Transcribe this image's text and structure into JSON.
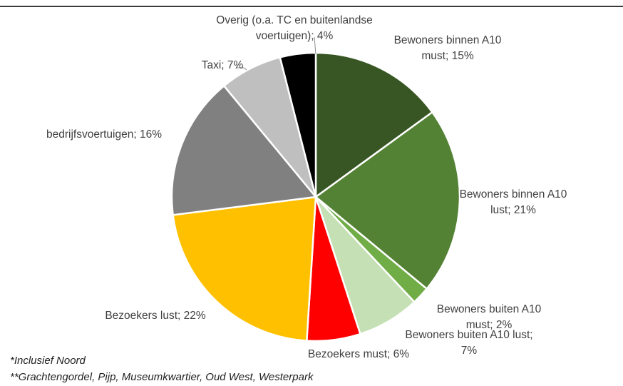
{
  "chart_data": {
    "type": "pie",
    "start": "12 o'clock",
    "direction": "clockwise",
    "slices": [
      {
        "label_lines": [
          "Bewoners binnen A10",
          "must; 15%"
        ],
        "value": 15,
        "color": "#375623"
      },
      {
        "label_lines": [
          "Bewoners binnen A10",
          "lust; 21%"
        ],
        "value": 21,
        "color": "#548235"
      },
      {
        "label_lines": [
          "Bewoners buiten A10",
          "must; 2%"
        ],
        "value": 2,
        "color": "#70ad47"
      },
      {
        "label_lines": [
          "Bewoners buiten A10 lust;",
          "7%"
        ],
        "value": 7,
        "color": "#c5e0b4"
      },
      {
        "label_lines": [
          "Bezoekers must; 6%"
        ],
        "value": 6,
        "color": "#ff0000"
      },
      {
        "label_lines": [
          "Bezoekers lust; 22%"
        ],
        "value": 22,
        "color": "#ffc000"
      },
      {
        "label_lines": [
          "bedrijfsvoertuigen; 16%"
        ],
        "value": 16,
        "color": "#808080"
      },
      {
        "label_lines": [
          "Taxi; 7%"
        ],
        "value": 7,
        "color": "#bfbfbf"
      },
      {
        "label_lines": [
          "Overig (o.a. TC en buitenlandse",
          "voertuigen); 4%"
        ],
        "value": 4,
        "color": "#000000"
      }
    ]
  },
  "footnotes": {
    "note1": "*Inclusief Noord",
    "note2": "**Grachtengordel, Pijp, Museumkwartier, Oud West, Westerpark"
  }
}
